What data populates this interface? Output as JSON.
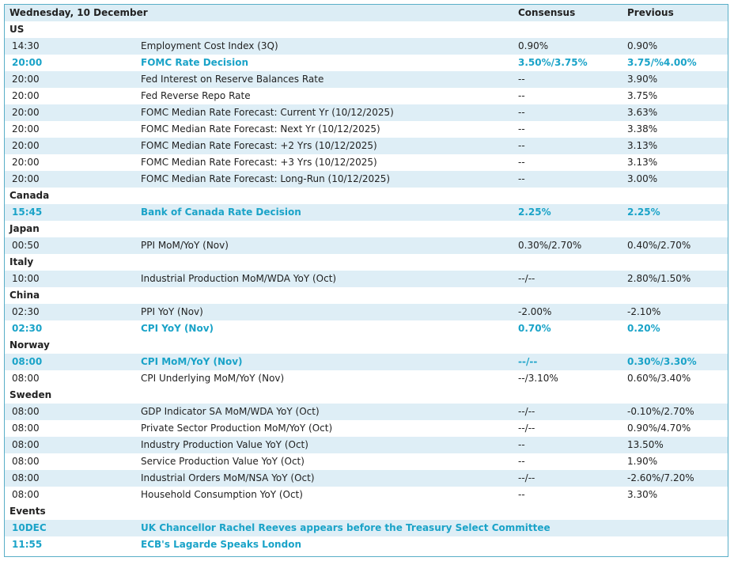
{
  "header": {
    "date": "Wednesday, 10 December",
    "consensus": "Consensus",
    "previous": "Previous"
  },
  "sections": [
    {
      "name": "US",
      "rows": [
        {
          "time": "14:30",
          "event": "Employment Cost Index (3Q)",
          "consensus": "0.90%",
          "previous": "0.90%"
        },
        {
          "time": "20:00",
          "event": "FOMC Rate Decision",
          "consensus": "3.50%/3.75%",
          "previous": "3.75/%4.00%",
          "highlight": true
        },
        {
          "time": "20:00",
          "event": "Fed Interest on Reserve Balances Rate",
          "consensus": "--",
          "previous": "3.90%"
        },
        {
          "time": "20:00",
          "event": "Fed Reverse Repo Rate",
          "consensus": "--",
          "previous": "3.75%"
        },
        {
          "time": "20:00",
          "event": "FOMC Median Rate Forecast: Current Yr (10/12/2025)",
          "consensus": "--",
          "previous": "3.63%"
        },
        {
          "time": "20:00",
          "event": "FOMC Median Rate Forecast: Next Yr (10/12/2025)",
          "consensus": "--",
          "previous": "3.38%"
        },
        {
          "time": "20:00",
          "event": "FOMC Median Rate Forecast: +2 Yrs (10/12/2025)",
          "consensus": "--",
          "previous": "3.13%"
        },
        {
          "time": "20:00",
          "event": "FOMC Median Rate Forecast: +3 Yrs (10/12/2025)",
          "consensus": "--",
          "previous": "3.13%"
        },
        {
          "time": "20:00",
          "event": "FOMC Median Rate Forecast: Long-Run (10/12/2025)",
          "consensus": "--",
          "previous": "3.00%"
        }
      ]
    },
    {
      "name": "Canada",
      "rows": [
        {
          "time": "15:45",
          "event": "Bank of Canada Rate Decision",
          "consensus": "2.25%",
          "previous": "2.25%",
          "highlight": true
        }
      ]
    },
    {
      "name": "Japan",
      "rows": [
        {
          "time": "00:50",
          "event": "PPI MoM/YoY (Nov)",
          "consensus": "0.30%/2.70%",
          "previous": "0.40%/2.70%"
        }
      ]
    },
    {
      "name": "Italy",
      "rows": [
        {
          "time": "10:00",
          "event": "Industrial Production MoM/WDA YoY (Oct)",
          "consensus": "--/--",
          "previous": "2.80%/1.50%"
        }
      ]
    },
    {
      "name": "China",
      "rows": [
        {
          "time": "02:30",
          "event": "PPI YoY (Nov)",
          "consensus": "-2.00%",
          "previous": "-2.10%"
        },
        {
          "time": "02:30",
          "event": "CPI YoY (Nov)",
          "consensus": "0.70%",
          "previous": "0.20%",
          "highlight": true
        }
      ]
    },
    {
      "name": "Norway",
      "rows": [
        {
          "time": "08:00",
          "event": "CPI MoM/YoY (Nov)",
          "consensus": "--/--",
          "previous": "0.30%/3.30%",
          "highlight": true
        },
        {
          "time": "08:00",
          "event": "CPI Underlying MoM/YoY (Nov)",
          "consensus": "--/3.10%",
          "previous": "0.60%/3.40%"
        }
      ]
    },
    {
      "name": "Sweden",
      "rows": [
        {
          "time": "08:00",
          "event": "GDP Indicator SA MoM/WDA YoY (Oct)",
          "consensus": "--/--",
          "previous": "-0.10%/2.70%"
        },
        {
          "time": "08:00",
          "event": "Private Sector Production MoM/YoY (Oct)",
          "consensus": "--/--",
          "previous": "0.90%/4.70%"
        },
        {
          "time": "08:00",
          "event": "Industry Production Value YoY (Oct)",
          "consensus": "--",
          "previous": "13.50%"
        },
        {
          "time": "08:00",
          "event": "Service Production Value YoY (Oct)",
          "consensus": "--",
          "previous": "1.90%"
        },
        {
          "time": "08:00",
          "event": "Industrial Orders MoM/NSA YoY (Oct)",
          "consensus": "--/--",
          "previous": "-2.60%/7.20%"
        },
        {
          "time": "08:00",
          "event": "Household Consumption YoY (Oct)",
          "consensus": "--",
          "previous": "3.30%"
        }
      ]
    },
    {
      "name": "Events",
      "rows": [
        {
          "time": "10DEC",
          "event": "UK Chancellor Rachel Reeves appears before the Treasury Select Committee",
          "highlight": true
        },
        {
          "time": "11:55",
          "event": "ECB's Lagarde Speaks London",
          "highlight": true
        }
      ]
    }
  ]
}
